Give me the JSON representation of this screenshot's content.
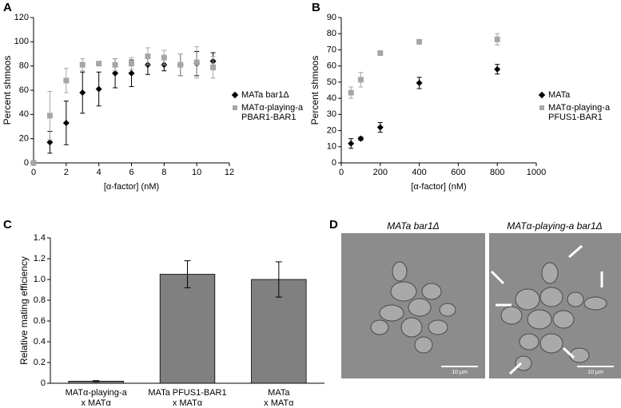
{
  "chart_data": [
    {
      "type": "scatter",
      "label": "A",
      "xlabel": "[α-factor] (nM)",
      "ylabel": "Percent shmoos",
      "x": [
        0,
        1,
        2,
        3,
        4,
        5,
        6,
        7,
        8,
        9,
        10,
        11
      ],
      "series": [
        {
          "name": "MATa bar1Δ",
          "color": "#000000",
          "marker": "diamond",
          "values": [
            null,
            17,
            33,
            58,
            61,
            74,
            74,
            81,
            81,
            81,
            82,
            84
          ],
          "errors": [
            null,
            9,
            18,
            17,
            14,
            12,
            11,
            8,
            5,
            9,
            10,
            7
          ]
        },
        {
          "name": "MATα-playing-a PBAR1-BAR1",
          "color": "#a6a6a6",
          "marker": "square",
          "values": [
            0,
            39,
            68,
            81,
            82,
            81,
            82,
            88,
            87,
            81,
            83,
            79
          ],
          "errors": [
            null,
            20,
            10,
            5,
            null,
            5,
            5,
            7,
            6,
            9,
            13,
            9
          ]
        }
      ],
      "xlim": [
        0,
        12
      ],
      "xticks": [
        0,
        2,
        4,
        6,
        8,
        10,
        12
      ],
      "ylim": [
        0,
        120
      ],
      "yticks": [
        0,
        20,
        40,
        60,
        80,
        100,
        120
      ],
      "legend": "right"
    },
    {
      "type": "scatter",
      "label": "B",
      "xlabel": "[α-factor] (nM)",
      "ylabel": "Percent shmoos",
      "x": [
        50,
        100,
        200,
        400,
        800
      ],
      "series": [
        {
          "name": "MATa",
          "color": "#000000",
          "marker": "diamond",
          "values": [
            12,
            15,
            22,
            49.5,
            58
          ],
          "errors": [
            3,
            1,
            3,
            3.5,
            3
          ]
        },
        {
          "name": "MATα-playing-a PFUS1-BAR1",
          "color": "#a6a6a6",
          "marker": "square",
          "values": [
            43.5,
            51.5,
            68,
            75,
            76.5
          ],
          "errors": [
            3.5,
            4.5,
            1.5,
            1,
            3.5
          ]
        }
      ],
      "xlim": [
        0,
        1000
      ],
      "xticks": [
        0,
        200,
        400,
        600,
        800,
        1000
      ],
      "ylim": [
        0,
        90
      ],
      "yticks": [
        0,
        10,
        20,
        30,
        40,
        50,
        60,
        70,
        80,
        90
      ],
      "legend": "right"
    },
    {
      "type": "bar",
      "label": "C",
      "ylabel": "Relative mating efficiency",
      "categories": [
        [
          "MATα-playing-a",
          "x MATα"
        ],
        [
          "MATa PFUS1-BAR1",
          "x MATα"
        ],
        [
          "MATa",
          "x MATα"
        ]
      ],
      "values": [
        0.02,
        1.05,
        1.0
      ],
      "errors": [
        0.005,
        0.13,
        0.17
      ],
      "color": "#808080",
      "ylim": [
        0,
        1.4
      ],
      "yticks": [
        0,
        0.2,
        0.4,
        0.6,
        0.8,
        {
          "value": 1,
          "label": "1.0"
        },
        1.2,
        1.4
      ]
    }
  ],
  "micrographs": {
    "label": "D",
    "panels": [
      {
        "title": "MATa bar1Δ",
        "scale_bar": "10 μm"
      },
      {
        "title": "MATα-playing-a bar1Δ",
        "scale_bar": "10 μm"
      }
    ]
  }
}
